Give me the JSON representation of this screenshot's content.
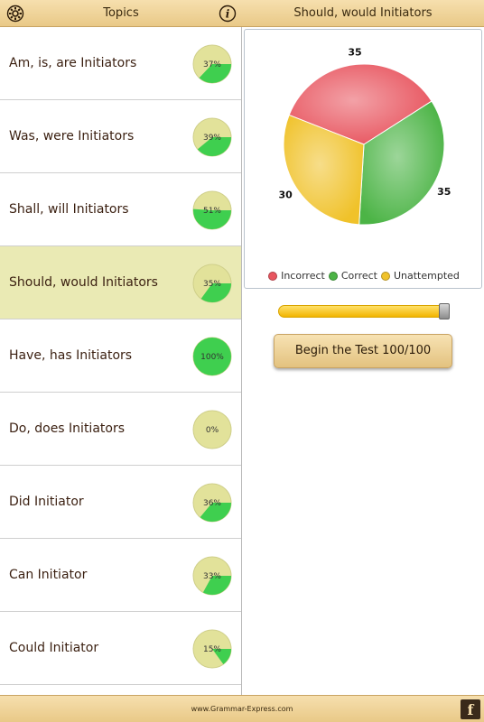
{
  "header": {
    "left_title": "Topics",
    "right_title": "Should, would Initiators",
    "settings_icon": "gear-icon",
    "info_icon": "info-icon"
  },
  "topics": [
    {
      "label": "Am, is, are Initiators",
      "percent": 37,
      "percent_text": "37%",
      "selected": false
    },
    {
      "label": "Was, were Initiators",
      "percent": 39,
      "percent_text": "39%",
      "selected": false
    },
    {
      "label": "Shall, will Initiators",
      "percent": 51,
      "percent_text": "51%",
      "selected": false
    },
    {
      "label": "Should, would Initiators",
      "percent": 35,
      "percent_text": "35%",
      "selected": true
    },
    {
      "label": "Have, has Initiators",
      "percent": 100,
      "percent_text": "100%",
      "selected": false
    },
    {
      "label": "Do, does Initiators",
      "percent": 0,
      "percent_text": "0%",
      "selected": false
    },
    {
      "label": "Did Initiator",
      "percent": 36,
      "percent_text": "36%",
      "selected": false
    },
    {
      "label": "Can Initiator",
      "percent": 33,
      "percent_text": "33%",
      "selected": false
    },
    {
      "label": "Could Initiator",
      "percent": 15,
      "percent_text": "15%",
      "selected": false
    }
  ],
  "chart_data": {
    "type": "pie",
    "slices": [
      {
        "name": "Incorrect",
        "value": 35,
        "label": "35",
        "color": "#e8555f"
      },
      {
        "name": "Correct",
        "value": 35,
        "label": "35",
        "color": "#4cb446"
      },
      {
        "name": "Unattempted",
        "value": 30,
        "label": "30",
        "color": "#f0c22a"
      }
    ],
    "legend_position": "bottom"
  },
  "slider": {
    "value": 100,
    "max": 100
  },
  "begin_button": {
    "label": "Begin the Test 100/100"
  },
  "footer": {
    "url": "www.Grammar-Express.com",
    "facebook_icon": "facebook-icon",
    "facebook_glyph": "f"
  },
  "colors": {
    "accent_bar": "#eed299",
    "selected_row": "#eaeab4",
    "badge_base": "#e2e29a",
    "badge_fill": "#3fcf4f"
  }
}
